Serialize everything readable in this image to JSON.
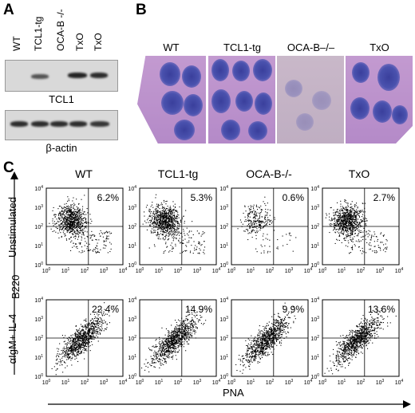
{
  "panel_a": {
    "letter": "A",
    "lanes": [
      "WT",
      "TCL1-tg",
      "OCA-B -/-",
      "TxO",
      "TxO"
    ],
    "blots": [
      {
        "caption": "TCL1",
        "band_intensity": [
          0.0,
          0.7,
          0.0,
          0.95,
          0.9
        ]
      },
      {
        "caption": "β-actin",
        "band_intensity": [
          0.9,
          0.9,
          0.9,
          0.9,
          0.85
        ]
      }
    ]
  },
  "panel_b": {
    "letter": "B",
    "images": [
      {
        "label": "WT"
      },
      {
        "label": "TCL1-tg"
      },
      {
        "label": "OCA-B–/–"
      },
      {
        "label": "TxO"
      }
    ]
  },
  "panel_c": {
    "letter": "C",
    "columns": [
      "WT",
      "TCL1-tg",
      "OCA-B-/-",
      "TxO"
    ],
    "rows": [
      {
        "label": "Unstimulated",
        "percents": [
          "6.2%",
          "5.3%",
          "0.6%",
          "2.7%"
        ]
      },
      {
        "label": "αIgM+ IL-4",
        "percents": [
          "22.4%",
          "14.9%",
          "9.9%",
          "13.6%"
        ]
      }
    ],
    "y_axis_label": "B220",
    "x_axis_label": "PNA",
    "tick_labels": [
      "10",
      "10",
      "10",
      "10",
      "10"
    ],
    "tick_exponents": [
      "0",
      "1",
      "2",
      "3",
      "4"
    ]
  },
  "colors": {
    "stain_pink": "#b48ac8",
    "follicle_blue": "#3a3f9c",
    "dot": "#000000"
  }
}
